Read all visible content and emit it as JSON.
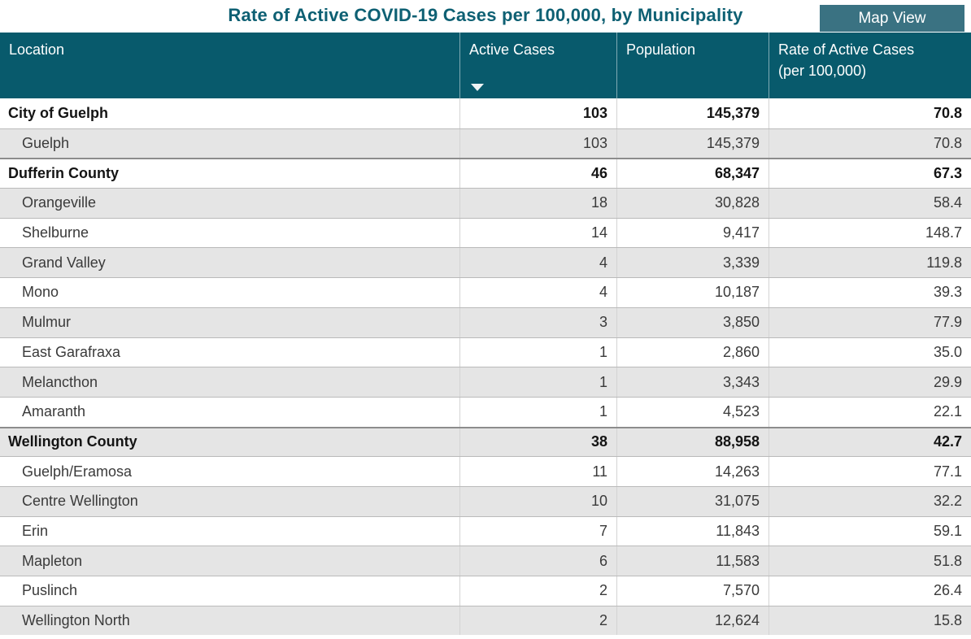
{
  "title": "Rate of Active COVID-19 Cases per 100,000, by Municipality",
  "map_view_button": "Map View",
  "colors": {
    "header_bg": "#085a6c",
    "title_text": "#0e6073",
    "button_bg": "#3a7282",
    "alt_row_bg": "#e5e5e5"
  },
  "table": {
    "columns": [
      {
        "label": "Location"
      },
      {
        "label": "Active Cases",
        "sorted": "descending",
        "sort_icon": "triangle-down"
      },
      {
        "label": "Population"
      },
      {
        "label": "Rate of Active Cases",
        "sublabel": "(per 100,000)"
      }
    ],
    "rows": [
      {
        "type": "group",
        "location": "City of Guelph",
        "active_cases": "103",
        "population": "145,379",
        "rate": "70.8"
      },
      {
        "type": "detail",
        "location": "Guelph",
        "active_cases": "103",
        "population": "145,379",
        "rate": "70.8"
      },
      {
        "type": "group",
        "location": "Dufferin County",
        "active_cases": "46",
        "population": "68,347",
        "rate": "67.3"
      },
      {
        "type": "detail",
        "location": "Orangeville",
        "active_cases": "18",
        "population": "30,828",
        "rate": "58.4"
      },
      {
        "type": "detail",
        "location": "Shelburne",
        "active_cases": "14",
        "population": "9,417",
        "rate": "148.7"
      },
      {
        "type": "detail",
        "location": "Grand Valley",
        "active_cases": "4",
        "population": "3,339",
        "rate": "119.8"
      },
      {
        "type": "detail",
        "location": "Mono",
        "active_cases": "4",
        "population": "10,187",
        "rate": "39.3"
      },
      {
        "type": "detail",
        "location": "Mulmur",
        "active_cases": "3",
        "population": "3,850",
        "rate": "77.9"
      },
      {
        "type": "detail",
        "location": "East Garafraxa",
        "active_cases": "1",
        "population": "2,860",
        "rate": "35.0"
      },
      {
        "type": "detail",
        "location": "Melancthon",
        "active_cases": "1",
        "population": "3,343",
        "rate": "29.9"
      },
      {
        "type": "detail",
        "location": "Amaranth",
        "active_cases": "1",
        "population": "4,523",
        "rate": "22.1"
      },
      {
        "type": "group",
        "location": "Wellington County",
        "active_cases": "38",
        "population": "88,958",
        "rate": "42.7"
      },
      {
        "type": "detail",
        "location": "Guelph/Eramosa",
        "active_cases": "11",
        "population": "14,263",
        "rate": "77.1"
      },
      {
        "type": "detail",
        "location": "Centre Wellington",
        "active_cases": "10",
        "population": "31,075",
        "rate": "32.2"
      },
      {
        "type": "detail",
        "location": "Erin",
        "active_cases": "7",
        "population": "11,843",
        "rate": "59.1"
      },
      {
        "type": "detail",
        "location": "Mapleton",
        "active_cases": "6",
        "population": "11,583",
        "rate": "51.8"
      },
      {
        "type": "detail",
        "location": "Puslinch",
        "active_cases": "2",
        "population": "7,570",
        "rate": "26.4"
      },
      {
        "type": "detail",
        "location": "Wellington North",
        "active_cases": "2",
        "population": "12,624",
        "rate": "15.8"
      }
    ]
  }
}
